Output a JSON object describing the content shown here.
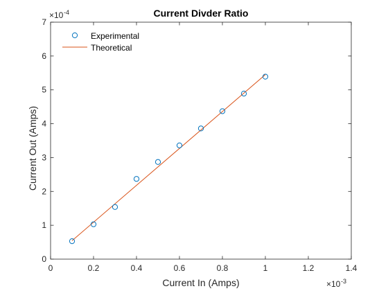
{
  "chart_data": {
    "type": "line",
    "title": "Current Divder Ratio",
    "xlabel": "Current In (Amps)",
    "ylabel": "Current Out (Amps)",
    "x_exponent": "-3",
    "y_exponent": "-4",
    "xlim": [
      0,
      1.4
    ],
    "ylim": [
      0,
      7
    ],
    "xticks": [
      0,
      0.2,
      0.4,
      0.6,
      0.8,
      1,
      1.2,
      1.4
    ],
    "xtick_labels": [
      "0",
      "0.2",
      "0.4",
      "0.6",
      "0.8",
      "1",
      "1.2",
      "1.4"
    ],
    "yticks": [
      0,
      1,
      2,
      3,
      4,
      5,
      6,
      7
    ],
    "ytick_labels": [
      "0",
      "1",
      "2",
      "3",
      "4",
      "5",
      "6",
      "7"
    ],
    "grid": false,
    "legend_placement": "top-left",
    "series": [
      {
        "name": "Experimental",
        "style": "markers",
        "marker": "circle",
        "color": "#0072BD",
        "x": [
          0.1,
          0.2,
          0.3,
          0.4,
          0.5,
          0.6,
          0.7,
          0.8,
          0.9,
          1.0
        ],
        "y": [
          0.53,
          1.03,
          1.54,
          2.37,
          2.87,
          3.36,
          3.86,
          4.37,
          4.89,
          5.39
        ]
      },
      {
        "name": "Theoretical",
        "style": "line",
        "color": "#D95319",
        "x": [
          0.1,
          1.0
        ],
        "y": [
          0.545,
          5.45
        ]
      }
    ]
  }
}
